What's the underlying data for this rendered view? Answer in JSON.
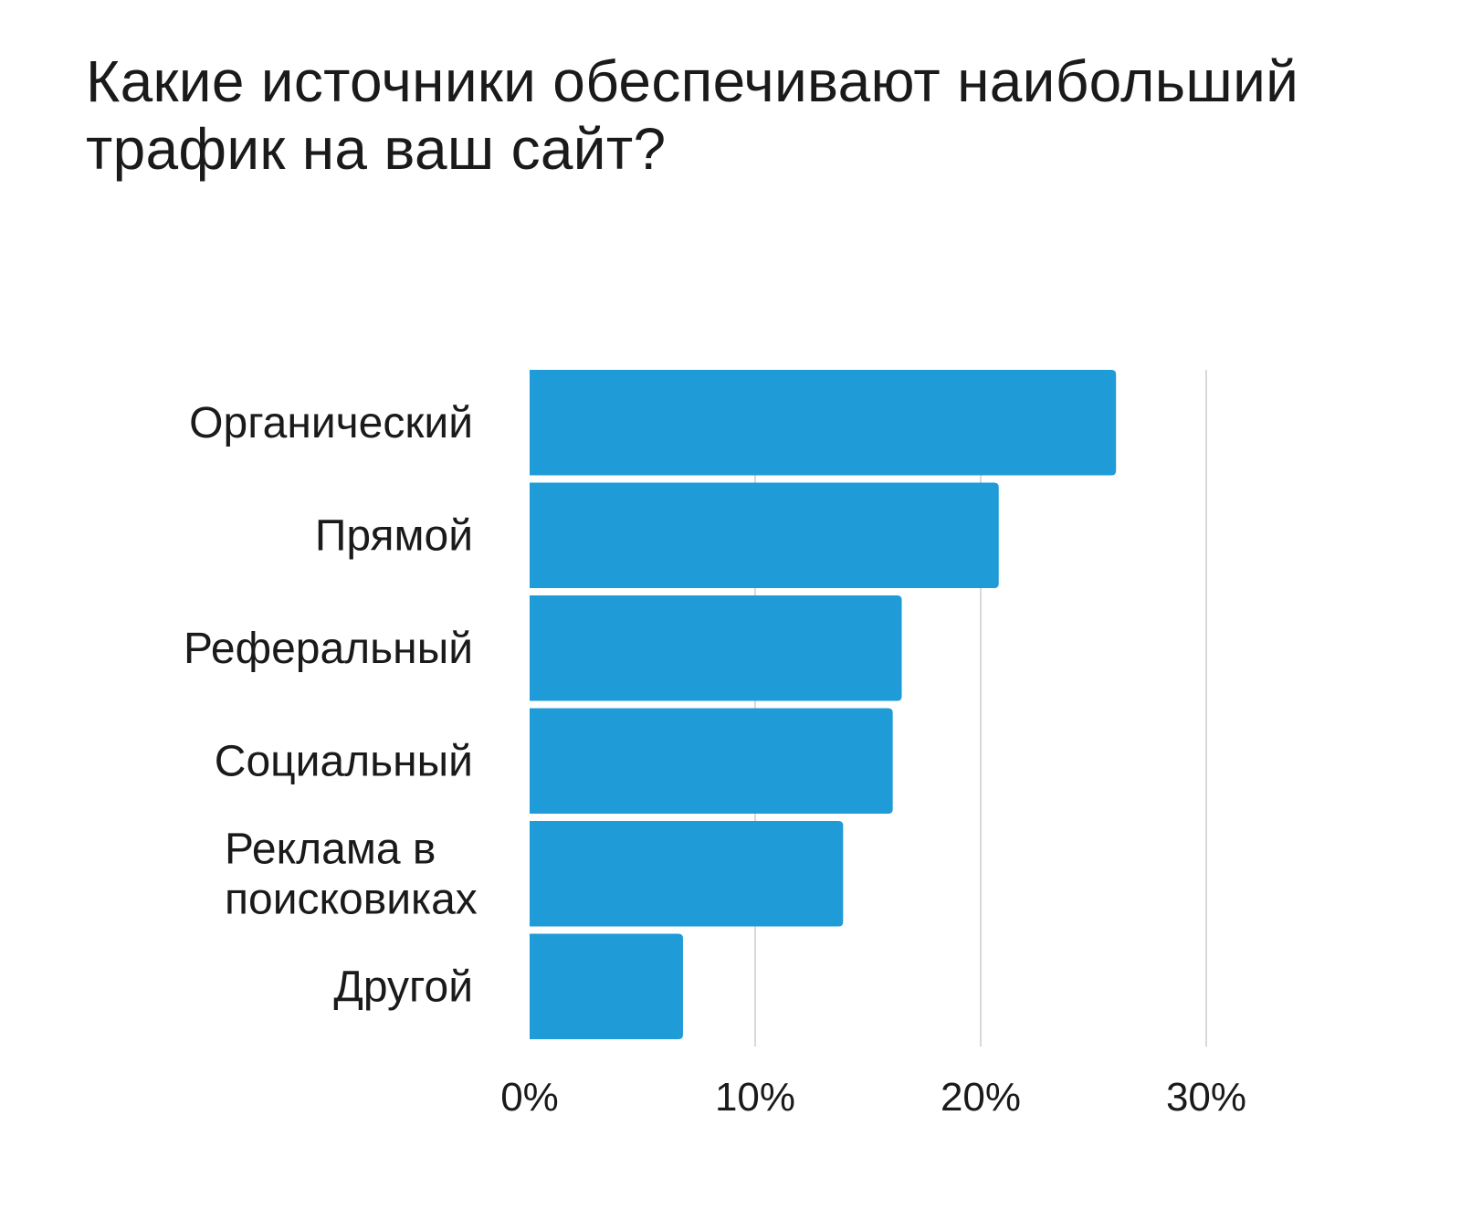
{
  "chart_data": {
    "type": "bar",
    "orientation": "horizontal",
    "title": "Какие источники обеспечивают наибольший трафик на ваш сайт?",
    "categories": [
      [
        "Органический"
      ],
      [
        "Прямой"
      ],
      [
        "Реферальный"
      ],
      [
        "Социальный"
      ],
      [
        "Реклама в",
        "поисковиках"
      ],
      [
        "Другой"
      ]
    ],
    "values": [
      26,
      20.8,
      16.5,
      16.1,
      13.9,
      6.8
    ],
    "x_ticks": [
      "0%",
      "10%",
      "20%",
      "30%"
    ],
    "xlim": [
      0,
      30
    ],
    "grid": "vertical",
    "bar_color": "#1f9bd7",
    "grid_color": "#d9d9d9"
  }
}
